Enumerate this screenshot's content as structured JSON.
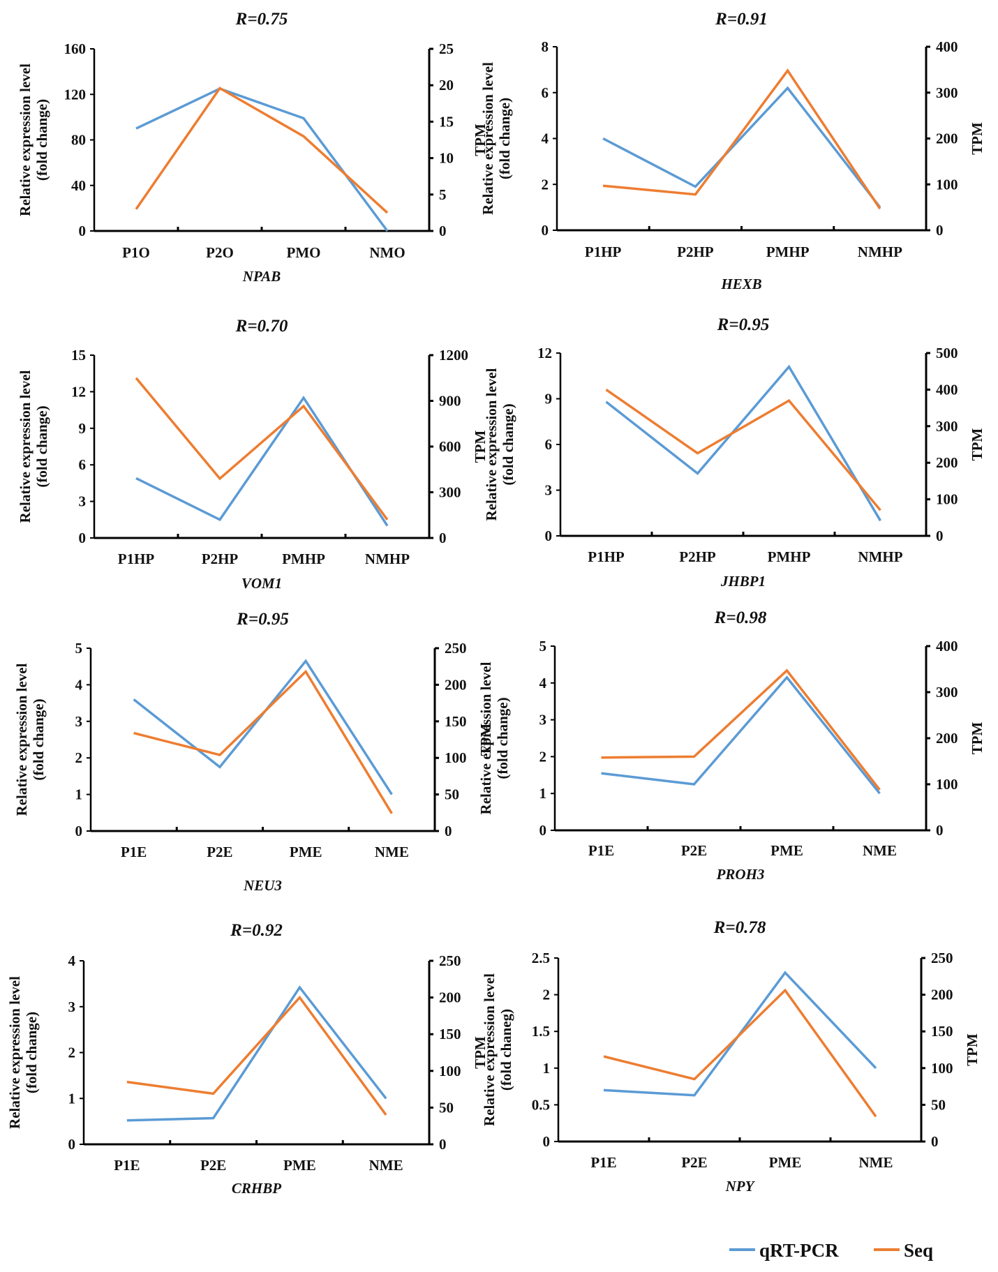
{
  "legend": {
    "items": [
      {
        "label": "qRT-PCR",
        "color": "#5b9bd5"
      },
      {
        "label": "Seq",
        "color": "#ed7d31"
      }
    ]
  },
  "chart_data": [
    {
      "type": "line",
      "title": "R=0.75",
      "gene": "NPAB",
      "categories": [
        "P1O",
        "P2O",
        "PMO",
        "NMO"
      ],
      "ylabel_left": [
        "Relative expression level",
        "(fold change)"
      ],
      "ylabel_right": "TPM",
      "ylim_left": [
        0,
        160
      ],
      "yticks_left": [
        0,
        40,
        80,
        120,
        160
      ],
      "ylim_right": [
        0,
        25
      ],
      "yticks_right": [
        0,
        5,
        10,
        15,
        20,
        25
      ],
      "series": [
        {
          "name": "qRT-PCR",
          "axis": "left",
          "values": [
            90,
            125,
            99,
            0
          ]
        },
        {
          "name": "Seq",
          "axis": "right",
          "values": [
            3,
            19.6,
            13,
            2.5
          ]
        }
      ]
    },
    {
      "type": "line",
      "title": "R=0.91",
      "gene": "HEXB",
      "categories": [
        "P1HP",
        "P2HP",
        "PMHP",
        "NMHP"
      ],
      "ylabel_left": [
        "Relative expression level",
        "(fold change)"
      ],
      "ylabel_right": "TPM",
      "ylim_left": [
        0,
        8
      ],
      "yticks_left": [
        0,
        2,
        4,
        6,
        8
      ],
      "ylim_right": [
        0,
        400
      ],
      "yticks_right": [
        0,
        100,
        200,
        300,
        400
      ],
      "series": [
        {
          "name": "qRT-PCR",
          "axis": "left",
          "values": [
            4.0,
            1.9,
            6.2,
            1.0
          ]
        },
        {
          "name": "Seq",
          "axis": "right",
          "values": [
            97,
            78,
            348,
            47
          ]
        }
      ]
    },
    {
      "type": "line",
      "title": "R=0.70",
      "gene": "VOM1",
      "categories": [
        "P1HP",
        "P2HP",
        "PMHP",
        "NMHP"
      ],
      "ylabel_left": [
        "Relative expression level",
        "(fold change)"
      ],
      "ylabel_right": "TPM",
      "ylim_left": [
        0,
        15
      ],
      "yticks_left": [
        0,
        3,
        6,
        9,
        12,
        15
      ],
      "ylim_right": [
        0,
        1200
      ],
      "yticks_right": [
        0,
        300,
        600,
        900,
        1200
      ],
      "series": [
        {
          "name": "qRT-PCR",
          "axis": "left",
          "values": [
            4.9,
            1.5,
            11.5,
            1.0
          ]
        },
        {
          "name": "Seq",
          "axis": "right",
          "values": [
            1050,
            390,
            865,
            120
          ]
        }
      ]
    },
    {
      "type": "line",
      "title": "R=0.95",
      "gene": "JHBP1",
      "categories": [
        "P1HP",
        "P2HP",
        "PMHP",
        "NMHP"
      ],
      "ylabel_left": [
        "Relative expression level",
        "(fold change)"
      ],
      "ylabel_right": "TPM",
      "ylim_left": [
        0,
        12
      ],
      "yticks_left": [
        0,
        3,
        6,
        9,
        12
      ],
      "ylim_right": [
        0,
        500
      ],
      "yticks_right": [
        0,
        100,
        200,
        300,
        400,
        500
      ],
      "series": [
        {
          "name": "qRT-PCR",
          "axis": "left",
          "values": [
            8.8,
            4.1,
            11.1,
            1.0
          ]
        },
        {
          "name": "Seq",
          "axis": "right",
          "values": [
            400,
            226,
            370,
            70
          ]
        }
      ]
    },
    {
      "type": "line",
      "title": "R=0.95",
      "gene": "NEU3",
      "categories": [
        "P1E",
        "P2E",
        "PME",
        "NME"
      ],
      "ylabel_left": [
        "Relative expression level",
        "(fold change)"
      ],
      "ylabel_right": "TPM",
      "ylim_left": [
        0,
        5
      ],
      "yticks_left": [
        0,
        1,
        2,
        3,
        4,
        5
      ],
      "ylim_right": [
        0,
        250
      ],
      "yticks_right": [
        0,
        50,
        100,
        150,
        200,
        250
      ],
      "series": [
        {
          "name": "qRT-PCR",
          "axis": "left",
          "values": [
            3.6,
            1.75,
            4.65,
            1.0
          ]
        },
        {
          "name": "Seq",
          "axis": "right",
          "values": [
            134,
            104,
            218,
            24
          ]
        }
      ]
    },
    {
      "type": "line",
      "title": "R=0.98",
      "gene": "PROH3",
      "categories": [
        "P1E",
        "P2E",
        "PME",
        "NME"
      ],
      "ylabel_left": [
        "Relative expression level",
        "(fold change)"
      ],
      "ylabel_right": "TPM",
      "ylim_left": [
        0,
        5
      ],
      "yticks_left": [
        0,
        1,
        2,
        3,
        4,
        5
      ],
      "ylim_right": [
        0,
        400
      ],
      "yticks_right": [
        0,
        100,
        200,
        300,
        400
      ],
      "series": [
        {
          "name": "qRT-PCR",
          "axis": "left",
          "values": [
            1.55,
            1.25,
            4.15,
            1.0
          ]
        },
        {
          "name": "Seq",
          "axis": "right",
          "values": [
            158,
            160,
            347,
            88
          ]
        }
      ]
    },
    {
      "type": "line",
      "title": "R=0.92",
      "gene": "CRHBP",
      "categories": [
        "P1E",
        "P2E",
        "PME",
        "NME"
      ],
      "ylabel_left": [
        "Relative expression level",
        "(fold change)"
      ],
      "ylabel_right": "TPM",
      "ylim_left": [
        0,
        4
      ],
      "yticks_left": [
        0,
        1,
        2,
        3,
        4
      ],
      "ylim_right": [
        0,
        250
      ],
      "yticks_right": [
        0,
        50,
        100,
        150,
        200,
        250
      ],
      "series": [
        {
          "name": "qRT-PCR",
          "axis": "left",
          "values": [
            0.52,
            0.57,
            3.42,
            1.0
          ]
        },
        {
          "name": "Seq",
          "axis": "right",
          "values": [
            85,
            69,
            200,
            40
          ]
        }
      ]
    },
    {
      "type": "line",
      "title": "R=0.78",
      "gene": "NPY",
      "categories": [
        "P1E",
        "P2E",
        "PME",
        "NME"
      ],
      "ylabel_left": [
        "Relative expression level",
        "(fold chaneg)"
      ],
      "ylabel_right": "TPM",
      "ylim_left": [
        0,
        2.5
      ],
      "yticks_left": [
        0,
        0.5,
        1,
        1.5,
        2,
        2.5
      ],
      "ylim_right": [
        0,
        250
      ],
      "yticks_right": [
        0,
        50,
        100,
        150,
        200,
        250
      ],
      "series": [
        {
          "name": "qRT-PCR",
          "axis": "left",
          "values": [
            0.7,
            0.63,
            2.3,
            1.0
          ]
        },
        {
          "name": "Seq",
          "axis": "right",
          "values": [
            116,
            85,
            206,
            34
          ]
        }
      ]
    }
  ]
}
